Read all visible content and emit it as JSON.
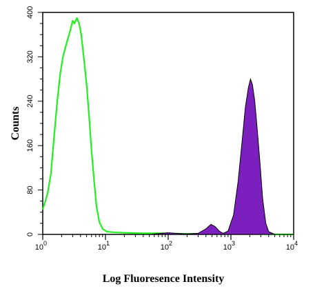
{
  "chart_data": {
    "type": "area",
    "xlabel": "Log Fluoresence Intensity",
    "ylabel": "Counts",
    "x_scale": "log",
    "xlim": [
      1,
      10000
    ],
    "ylim": [
      0,
      400
    ],
    "x_ticks": [
      {
        "base": "10",
        "exp": "0",
        "value": 1
      },
      {
        "base": "10",
        "exp": "1",
        "value": 10
      },
      {
        "base": "10",
        "exp": "2",
        "value": 100
      },
      {
        "base": "10",
        "exp": "3",
        "value": 1000
      },
      {
        "base": "10",
        "exp": "4",
        "value": 10000
      }
    ],
    "y_ticks": [
      "0",
      "80",
      "160",
      "240",
      "320",
      "400"
    ],
    "grid": false,
    "series": [
      {
        "style": "outline",
        "color": "#22ee22",
        "points": [
          [
            1.0,
            45
          ],
          [
            1.1,
            60
          ],
          [
            1.2,
            75
          ],
          [
            1.35,
            110
          ],
          [
            1.5,
            170
          ],
          [
            1.7,
            240
          ],
          [
            1.9,
            290
          ],
          [
            2.1,
            320
          ],
          [
            2.4,
            345
          ],
          [
            2.7,
            365
          ],
          [
            3.0,
            385
          ],
          [
            3.2,
            380
          ],
          [
            3.5,
            390
          ],
          [
            3.8,
            380
          ],
          [
            4.1,
            360
          ],
          [
            4.5,
            320
          ],
          [
            5.0,
            270
          ],
          [
            5.5,
            210
          ],
          [
            6.0,
            150
          ],
          [
            6.6,
            95
          ],
          [
            7.2,
            50
          ],
          [
            8.0,
            22
          ],
          [
            9.0,
            10
          ],
          [
            10.5,
            5
          ],
          [
            13,
            4
          ],
          [
            20,
            3
          ],
          [
            40,
            2
          ],
          [
            80,
            2
          ],
          [
            200,
            1
          ],
          [
            500,
            1
          ],
          [
            1000,
            1
          ],
          [
            2000,
            1
          ],
          [
            5000,
            0
          ],
          [
            10000,
            0
          ]
        ]
      },
      {
        "style": "filled",
        "color": "#7c1fbf",
        "points": [
          [
            1.0,
            0
          ],
          [
            50,
            0
          ],
          [
            80,
            2
          ],
          [
            100,
            3
          ],
          [
            130,
            2
          ],
          [
            200,
            1
          ],
          [
            300,
            2
          ],
          [
            400,
            10
          ],
          [
            480,
            18
          ],
          [
            560,
            14
          ],
          [
            650,
            6
          ],
          [
            750,
            2
          ],
          [
            900,
            6
          ],
          [
            1100,
            35
          ],
          [
            1300,
            95
          ],
          [
            1500,
            165
          ],
          [
            1700,
            230
          ],
          [
            1900,
            265
          ],
          [
            2050,
            280
          ],
          [
            2200,
            270
          ],
          [
            2400,
            240
          ],
          [
            2600,
            195
          ],
          [
            2900,
            130
          ],
          [
            3200,
            65
          ],
          [
            3600,
            20
          ],
          [
            4000,
            5
          ],
          [
            5000,
            0
          ],
          [
            10000,
            0
          ]
        ]
      }
    ]
  }
}
